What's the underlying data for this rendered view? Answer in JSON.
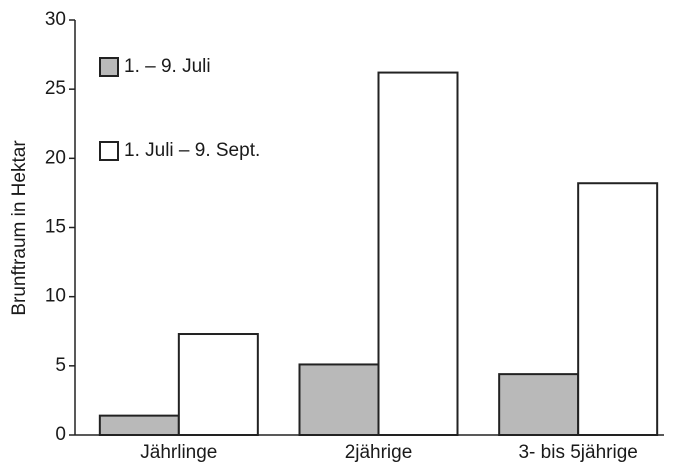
{
  "chart_data": {
    "type": "bar",
    "y_label": "Brunftraum in Hektar",
    "categories": [
      "Jährlinge",
      "2jährige",
      "3- bis 5jährige"
    ],
    "series": [
      {
        "name": "1. – 9. Juli",
        "color": "#b9b9b9",
        "values": [
          1.4,
          5.1,
          4.4
        ]
      },
      {
        "name": "1. Juli – 9. Sept.",
        "color": "#ffffff",
        "values": [
          7.3,
          26.2,
          18.2
        ]
      }
    ],
    "ylim": [
      0,
      30
    ],
    "yticks": [
      0,
      5,
      10,
      15,
      20,
      25,
      30
    ],
    "legend": "upper left"
  }
}
